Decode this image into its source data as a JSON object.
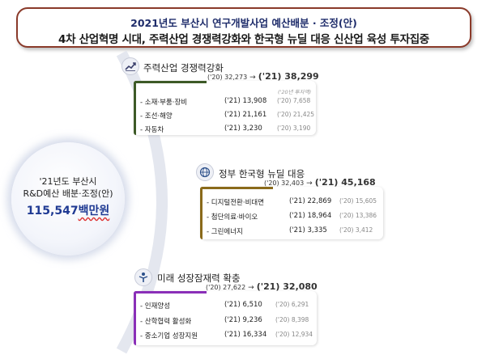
{
  "title": {
    "line1": "2021년도 부산시 연구개발사업 예산배분 · 조정(안)",
    "line2": "4차 산업혁명 시대, 주력산업 경쟁력강화와 한국형 뉴딜 대응 신산업 육성 투자집중"
  },
  "center": {
    "line1": "'21년도 부산시",
    "line2": "R&D예산 배분·조정(안)",
    "amount": "115,547",
    "unit": "백만원"
  },
  "sections": [
    {
      "icon": "chart-icon",
      "color": "#3d5a27",
      "title": "주력산업 경쟁력강화",
      "prev": "('20) 32,273",
      "arrow": "→",
      "curr": "('21) 38,299",
      "col20_header": "('20년 투자액)",
      "items": [
        {
          "label": "- 소재·부품·장비",
          "v21": "('21) 13,908",
          "v20": "('20)   7,658"
        },
        {
          "label": "- 조선·해양",
          "v21": "('21) 21,161",
          "v20": "('20) 21,425"
        },
        {
          "label": "- 자동차",
          "v21": "('21)   3,230",
          "v20": "('20)   3,190"
        }
      ]
    },
    {
      "icon": "globe-icon",
      "color": "#8a6a1a",
      "title": "정부 한국형 뉴딜 대응",
      "prev": "('20) 32,403",
      "arrow": "→",
      "curr": "('21) 45,168",
      "items": [
        {
          "label": "- 디지털전환·비대면",
          "v21": "('21) 22,869",
          "v20": "('20) 15,605"
        },
        {
          "label": "- 첨단의료·바이오",
          "v21": "('21) 18,964",
          "v20": "('20) 13,386"
        },
        {
          "label": "- 그린에너지",
          "v21": "('21)   3,335",
          "v20": "('20)   3,412"
        }
      ]
    },
    {
      "icon": "growth-person-icon",
      "color": "#8a2fb8",
      "title": "미래 성장잠재력 확충",
      "prev": "('20) 27,622",
      "arrow": "→",
      "curr": "('21) 32,080",
      "items": [
        {
          "label": "- 인재양성",
          "v21": "('21)   6,510",
          "v20": "('20)   6,291"
        },
        {
          "label": "- 산학협력 활성화",
          "v21": "('21)   9,236",
          "v20": "('20)   8,398"
        },
        {
          "label": "- 중소기업 성장지원",
          "v21": "('21) 16,334",
          "v20": "('20) 12,934"
        }
      ]
    }
  ]
}
